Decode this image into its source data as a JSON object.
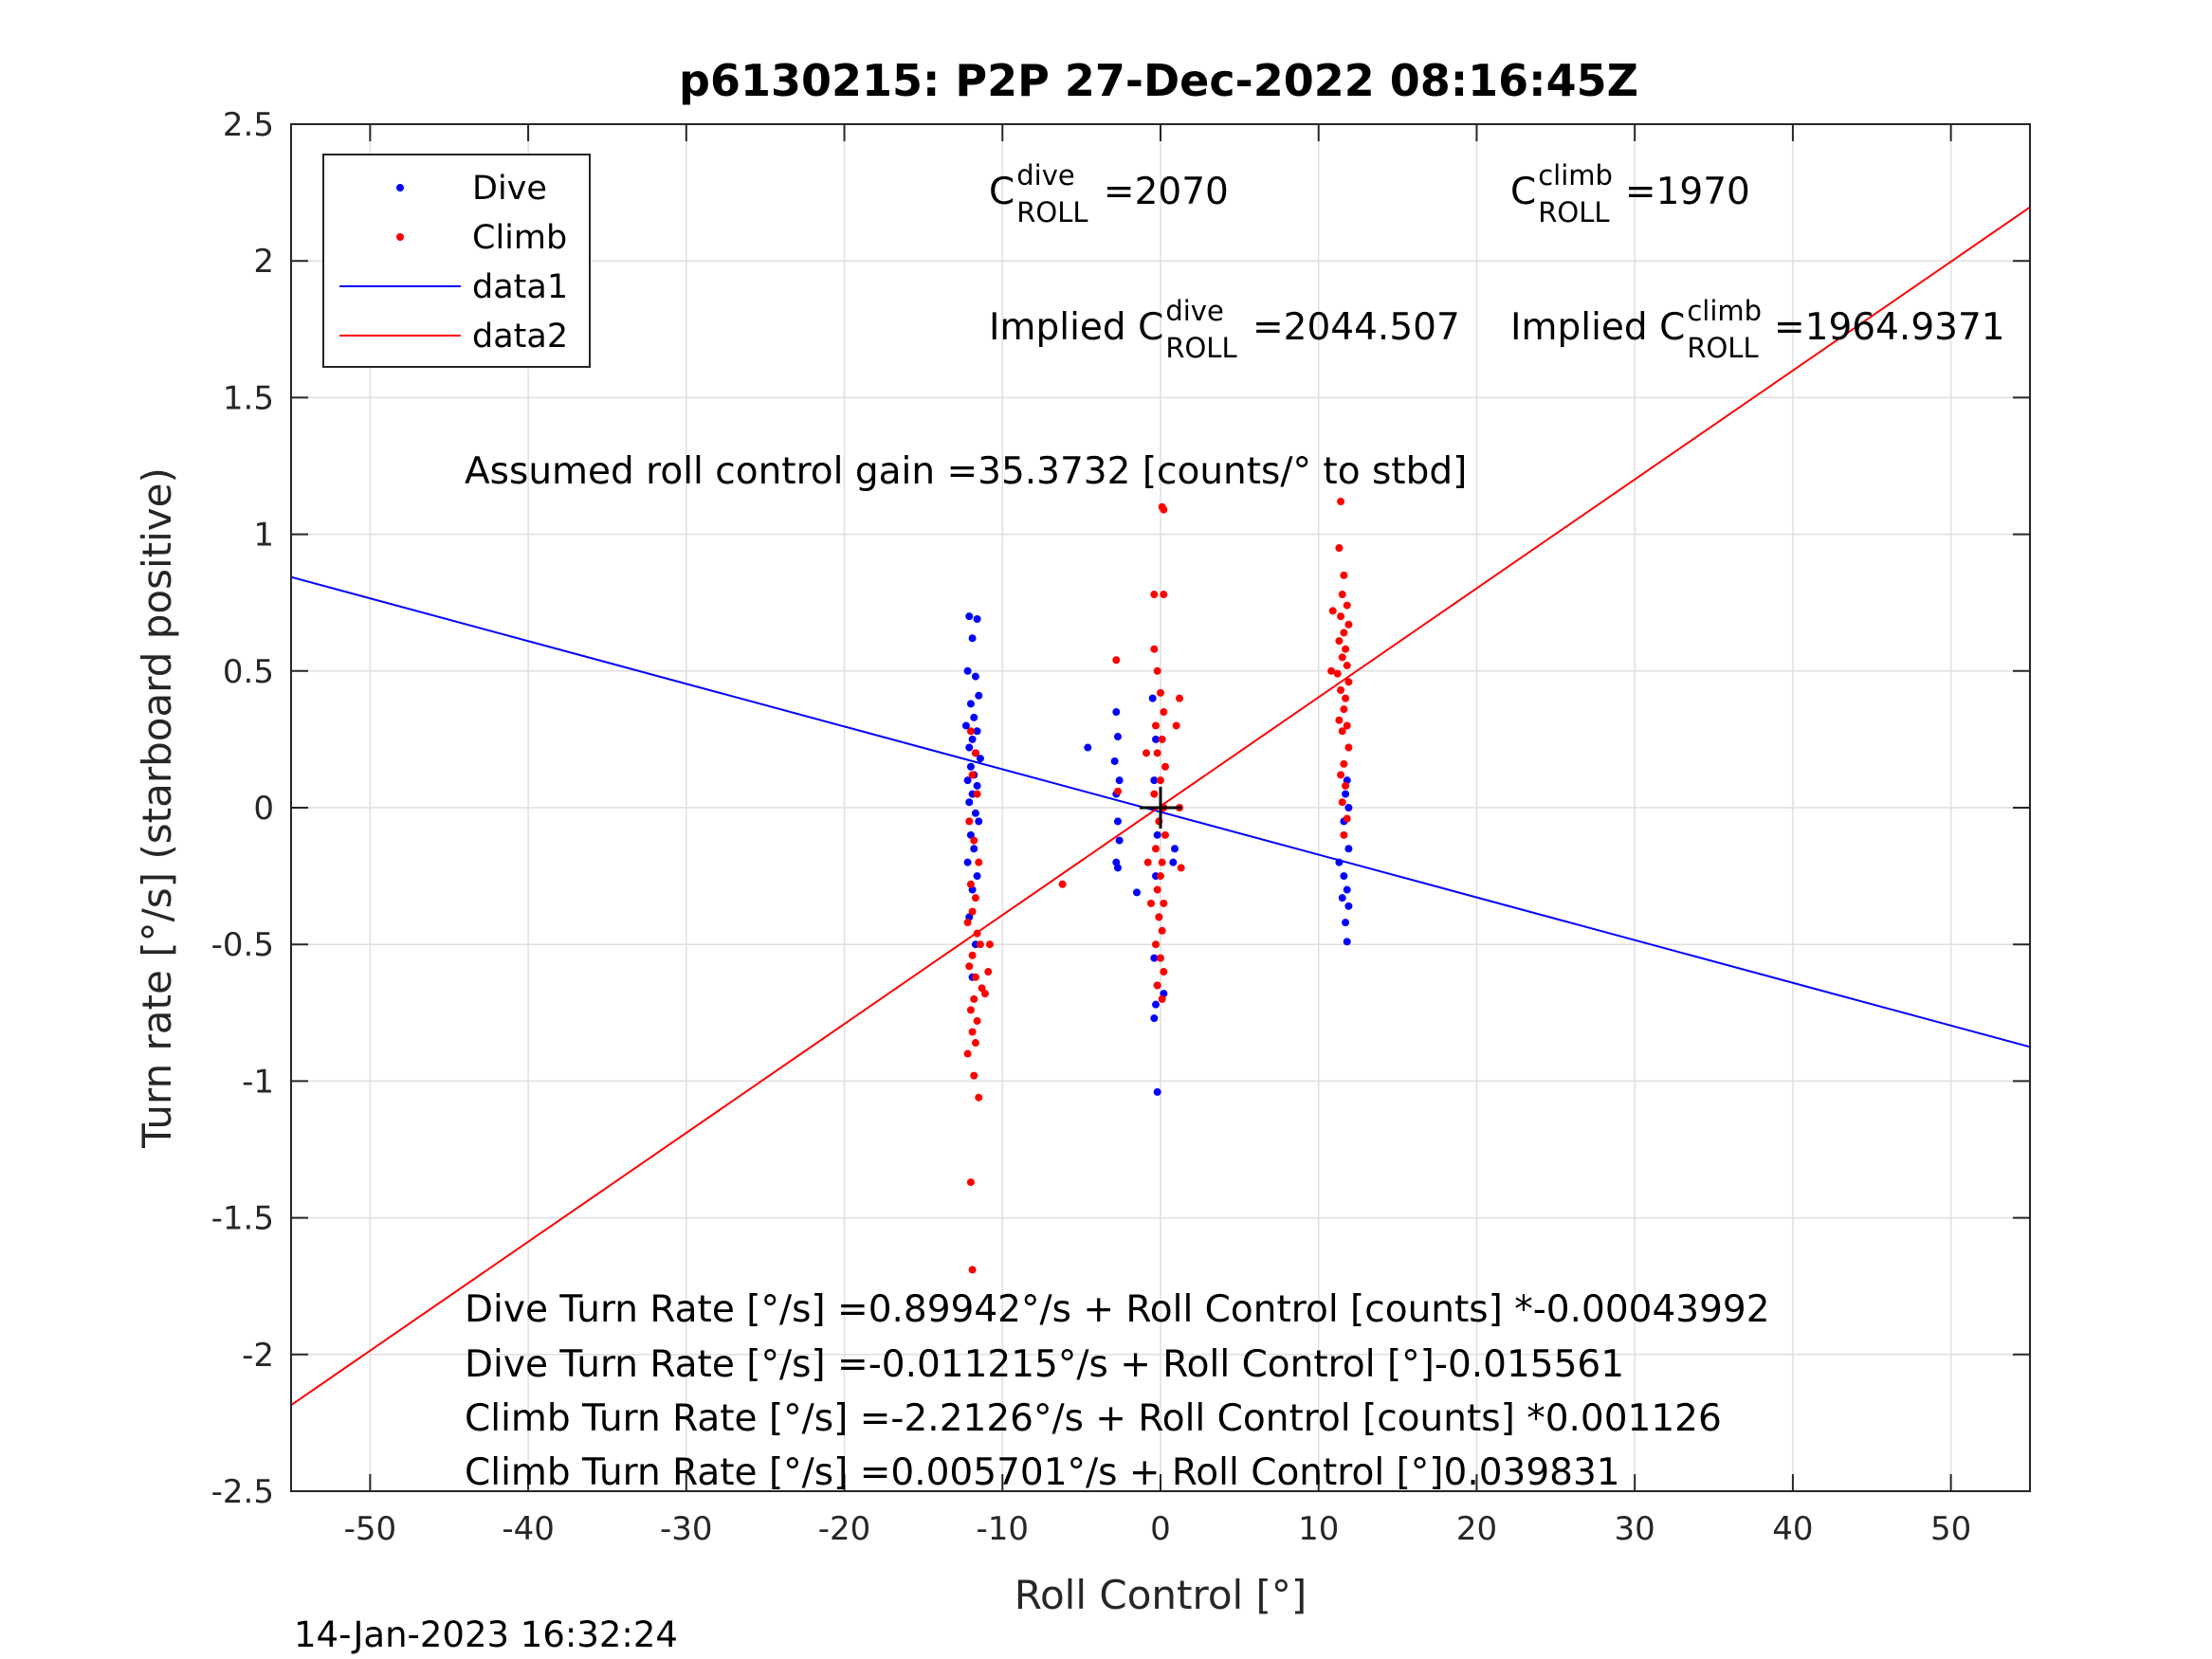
{
  "chart_data": {
    "type": "scatter",
    "title": "p6130215: P2P 27-Dec-2022 08:16:45Z",
    "xlabel": "Roll Control [°]",
    "ylabel": "Turn rate [°/s] (starboard positive)",
    "xlim": [
      -55,
      55
    ],
    "ylim": [
      -2.5,
      2.5
    ],
    "xticks": [
      -50,
      -40,
      -30,
      -20,
      -10,
      0,
      10,
      20,
      30,
      40,
      50
    ],
    "xtick_labels": [
      "-50",
      "-40",
      "-30",
      "-20",
      "-10",
      "0",
      "10",
      "20",
      "30",
      "40",
      "50"
    ],
    "yticks": [
      2.5,
      2,
      1.5,
      1,
      0.5,
      0,
      -0.5,
      -1,
      -1.5,
      -2,
      -2.5
    ],
    "ytick_labels": [
      "2.5",
      "2",
      "1.5",
      "1",
      "0.5",
      "0",
      "-0.5",
      "-1",
      "-1.5",
      "-2",
      "-2.5"
    ],
    "grid": true,
    "legend_position": "top-left",
    "legend": [
      {
        "label": "Dive",
        "kind": "marker",
        "color": "#0000ff"
      },
      {
        "label": "Climb",
        "kind": "marker",
        "color": "#ff0000"
      },
      {
        "label": "data1",
        "kind": "line",
        "color": "#0000ff"
      },
      {
        "label": "data2",
        "kind": "line",
        "color": "#ff0000"
      }
    ],
    "series": [
      {
        "name": "Dive",
        "kind": "scatter",
        "color": "#0000ff",
        "points": [
          [
            -12.1,
            0.7
          ],
          [
            -11.6,
            0.69
          ],
          [
            -11.9,
            0.62
          ],
          [
            -12.2,
            0.5
          ],
          [
            -11.7,
            0.48
          ],
          [
            -11.5,
            0.41
          ],
          [
            -12.0,
            0.38
          ],
          [
            -11.8,
            0.33
          ],
          [
            -12.3,
            0.3
          ],
          [
            -11.6,
            0.28
          ],
          [
            -11.9,
            0.25
          ],
          [
            -12.1,
            0.22
          ],
          [
            -11.7,
            0.2
          ],
          [
            -11.4,
            0.18
          ],
          [
            -12.0,
            0.15
          ],
          [
            -11.8,
            0.12
          ],
          [
            -12.2,
            0.1
          ],
          [
            -11.6,
            0.08
          ],
          [
            -11.9,
            0.05
          ],
          [
            -12.1,
            0.02
          ],
          [
            -11.7,
            -0.02
          ],
          [
            -11.5,
            -0.05
          ],
          [
            -12.0,
            -0.1
          ],
          [
            -11.8,
            -0.15
          ],
          [
            -12.2,
            -0.2
          ],
          [
            -11.6,
            -0.25
          ],
          [
            -11.9,
            -0.3
          ],
          [
            -12.1,
            -0.4
          ],
          [
            -11.7,
            -0.5
          ],
          [
            -11.9,
            -0.62
          ],
          [
            -4.6,
            0.22
          ],
          [
            -2.8,
            0.35
          ],
          [
            -2.7,
            0.26
          ],
          [
            -2.9,
            0.17
          ],
          [
            -2.6,
            0.1
          ],
          [
            -2.8,
            0.05
          ],
          [
            -2.7,
            -0.05
          ],
          [
            -2.6,
            -0.12
          ],
          [
            -2.8,
            -0.2
          ],
          [
            -2.7,
            -0.22
          ],
          [
            -1.5,
            -0.31
          ],
          [
            -0.5,
            0.4
          ],
          [
            -0.3,
            0.25
          ],
          [
            -0.4,
            0.1
          ],
          [
            -0.2,
            -0.1
          ],
          [
            -0.3,
            -0.25
          ],
          [
            -0.1,
            -0.4
          ],
          [
            -0.4,
            -0.55
          ],
          [
            -0.2,
            -0.65
          ],
          [
            -0.3,
            -0.72
          ],
          [
            -0.4,
            -0.77
          ],
          [
            0.2,
            -0.68
          ],
          [
            -0.2,
            -1.04
          ],
          [
            0.9,
            -0.15
          ],
          [
            0.8,
            -0.2
          ],
          [
            11.3,
            -0.2
          ],
          [
            11.9,
            -0.15
          ],
          [
            11.6,
            -0.25
          ],
          [
            11.8,
            -0.3
          ],
          [
            11.5,
            -0.33
          ],
          [
            11.9,
            -0.36
          ],
          [
            11.7,
            -0.42
          ],
          [
            11.8,
            -0.49
          ],
          [
            11.6,
            -0.05
          ],
          [
            11.9,
            0.0
          ],
          [
            11.7,
            0.05
          ],
          [
            11.8,
            0.1
          ]
        ]
      },
      {
        "name": "Climb",
        "kind": "scatter",
        "color": "#ff0000",
        "points": [
          [
            -12.0,
            0.28
          ],
          [
            -11.7,
            0.2
          ],
          [
            -11.9,
            0.12
          ],
          [
            -11.6,
            0.05
          ],
          [
            -12.1,
            -0.05
          ],
          [
            -11.8,
            -0.12
          ],
          [
            -11.5,
            -0.2
          ],
          [
            -12.0,
            -0.28
          ],
          [
            -11.7,
            -0.33
          ],
          [
            -11.9,
            -0.38
          ],
          [
            -12.2,
            -0.42
          ],
          [
            -11.6,
            -0.46
          ],
          [
            -11.4,
            -0.5
          ],
          [
            -11.9,
            -0.54
          ],
          [
            -12.1,
            -0.58
          ],
          [
            -11.7,
            -0.62
          ],
          [
            -11.3,
            -0.66
          ],
          [
            -11.8,
            -0.7
          ],
          [
            -12.0,
            -0.74
          ],
          [
            -11.6,
            -0.78
          ],
          [
            -11.9,
            -0.82
          ],
          [
            -11.7,
            -0.86
          ],
          [
            -12.2,
            -0.9
          ],
          [
            -11.8,
            -0.98
          ],
          [
            -11.5,
            -1.06
          ],
          [
            -10.8,
            -0.5
          ],
          [
            -10.9,
            -0.6
          ],
          [
            -11.1,
            -0.68
          ],
          [
            -12.0,
            -1.37
          ],
          [
            -11.9,
            -1.69
          ],
          [
            -6.2,
            -0.28
          ],
          [
            -2.8,
            0.54
          ],
          [
            -2.7,
            0.06
          ],
          [
            -0.4,
            0.58
          ],
          [
            -0.2,
            0.5
          ],
          [
            0.0,
            0.42
          ],
          [
            0.2,
            0.35
          ],
          [
            -0.3,
            0.3
          ],
          [
            0.1,
            0.25
          ],
          [
            -0.2,
            0.2
          ],
          [
            0.3,
            0.15
          ],
          [
            0.0,
            0.1
          ],
          [
            -0.4,
            0.05
          ],
          [
            0.2,
            0.0
          ],
          [
            -0.1,
            -0.05
          ],
          [
            0.3,
            -0.1
          ],
          [
            -0.3,
            -0.15
          ],
          [
            0.1,
            -0.2
          ],
          [
            0.0,
            -0.25
          ],
          [
            -0.2,
            -0.3
          ],
          [
            0.2,
            -0.35
          ],
          [
            -0.1,
            -0.4
          ],
          [
            0.1,
            -0.45
          ],
          [
            -0.3,
            -0.5
          ],
          [
            0.0,
            -0.55
          ],
          [
            0.2,
            -0.6
          ],
          [
            -0.2,
            -0.65
          ],
          [
            0.1,
            -0.7
          ],
          [
            -0.4,
            0.78
          ],
          [
            0.2,
            0.78
          ],
          [
            0.2,
            1.09
          ],
          [
            0.1,
            1.1
          ],
          [
            -0.6,
            -0.35
          ],
          [
            -0.8,
            -0.2
          ],
          [
            1.2,
            0.4
          ],
          [
            1.0,
            0.3
          ],
          [
            1.3,
            -0.22
          ],
          [
            1.2,
            0.0
          ],
          [
            -0.9,
            0.2
          ],
          [
            11.4,
            1.12
          ],
          [
            11.3,
            0.95
          ],
          [
            11.6,
            0.85
          ],
          [
            11.5,
            0.78
          ],
          [
            11.8,
            0.74
          ],
          [
            11.4,
            0.7
          ],
          [
            11.9,
            0.67
          ],
          [
            11.6,
            0.64
          ],
          [
            11.3,
            0.61
          ],
          [
            11.7,
            0.58
          ],
          [
            11.5,
            0.55
          ],
          [
            11.8,
            0.52
          ],
          [
            11.2,
            0.49
          ],
          [
            11.9,
            0.46
          ],
          [
            11.4,
            0.43
          ],
          [
            11.7,
            0.4
          ],
          [
            11.6,
            0.36
          ],
          [
            11.3,
            0.32
          ],
          [
            11.8,
            0.3
          ],
          [
            11.5,
            0.28
          ],
          [
            11.9,
            0.22
          ],
          [
            11.6,
            0.16
          ],
          [
            11.4,
            0.12
          ],
          [
            11.7,
            0.08
          ],
          [
            11.5,
            0.02
          ],
          [
            11.8,
            -0.04
          ],
          [
            11.6,
            -0.1
          ],
          [
            10.8,
            0.5
          ],
          [
            10.9,
            0.72
          ]
        ]
      },
      {
        "name": "data1",
        "kind": "line",
        "color": "#0000ff",
        "points": [
          [
            -55,
            0.8437
          ],
          [
            55,
            -0.8749
          ]
        ]
      },
      {
        "name": "data2",
        "kind": "line",
        "color": "#ff0000",
        "points": [
          [
            -55,
            -2.185
          ],
          [
            55,
            2.1964
          ]
        ]
      }
    ],
    "annotations": [
      {
        "id": "c-dive",
        "prefix": "C",
        "sup": "dive",
        "sub": "ROLL",
        "suffix": " =2070"
      },
      {
        "id": "c-climb",
        "prefix": "C",
        "sup": "climb",
        "sub": "ROLL",
        "suffix": " =1970"
      },
      {
        "id": "implied-dive",
        "prefix": "Implied C",
        "sup": "dive",
        "sub": "ROLL",
        "suffix": " =2044.507"
      },
      {
        "id": "implied-climb",
        "prefix": "Implied C",
        "sup": "climb",
        "sub": "ROLL",
        "suffix": " =1964.9371"
      },
      {
        "id": "gain",
        "text": "Assumed roll control gain =35.3732 [counts/° to stbd]"
      },
      {
        "id": "eq1",
        "text": "Dive Turn Rate [°/s] =0.89942°/s + Roll Control [counts] *-0.00043992"
      },
      {
        "id": "eq2",
        "text": "Dive Turn Rate [°/s] =-0.011215°/s + Roll Control [°]-0.015561"
      },
      {
        "id": "eq3",
        "text": "Climb Turn Rate [°/s] =-2.2126°/s + Roll Control [counts] *0.001126"
      },
      {
        "id": "eq4",
        "text": "Climb Turn Rate [°/s] =0.005701°/s + Roll Control [°]0.039831"
      }
    ]
  },
  "footer": {
    "timestamp": "14-Jan-2023 16:32:24"
  }
}
